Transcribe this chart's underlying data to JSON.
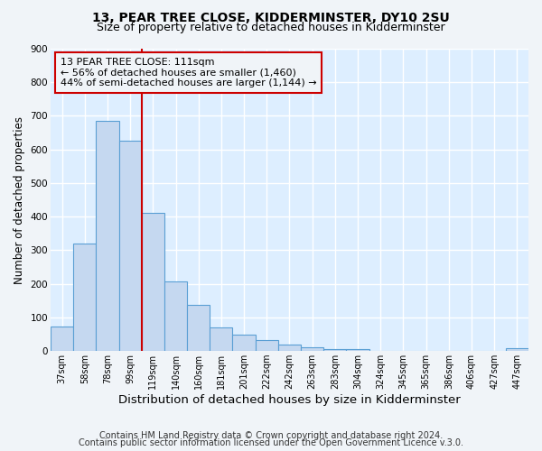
{
  "title1": "13, PEAR TREE CLOSE, KIDDERMINSTER, DY10 2SU",
  "title2": "Size of property relative to detached houses in Kidderminster",
  "xlabel": "Distribution of detached houses by size in Kidderminster",
  "ylabel": "Number of detached properties",
  "categories": [
    "37sqm",
    "58sqm",
    "78sqm",
    "99sqm",
    "119sqm",
    "140sqm",
    "160sqm",
    "181sqm",
    "201sqm",
    "222sqm",
    "242sqm",
    "263sqm",
    "283sqm",
    "304sqm",
    "324sqm",
    "345sqm",
    "365sqm",
    "386sqm",
    "406sqm",
    "427sqm",
    "447sqm"
  ],
  "values": [
    72,
    320,
    685,
    625,
    410,
    208,
    138,
    70,
    48,
    32,
    20,
    10,
    5,
    5,
    0,
    0,
    0,
    0,
    0,
    0,
    8
  ],
  "bar_color": "#c5d8f0",
  "bar_edge_color": "#5a9fd4",
  "vline_x_index": 3,
  "vline_color": "#cc0000",
  "annotation_line1": "13 PEAR TREE CLOSE: 111sqm",
  "annotation_line2": "← 56% of detached houses are smaller (1,460)",
  "annotation_line3": "44% of semi-detached houses are larger (1,144) →",
  "annotation_box_color": "#cc0000",
  "ylim": [
    0,
    900
  ],
  "yticks": [
    0,
    100,
    200,
    300,
    400,
    500,
    600,
    700,
    800,
    900
  ],
  "footer_line1": "Contains HM Land Registry data © Crown copyright and database right 2024.",
  "footer_line2": "Contains public sector information licensed under the Open Government Licence v.3.0.",
  "plot_bg_color": "#ddeeff",
  "fig_bg_color": "#f0f4f8",
  "grid_color": "#ffffff",
  "title1_fontsize": 10,
  "title2_fontsize": 9,
  "xlabel_fontsize": 9.5,
  "ylabel_fontsize": 8.5,
  "footer_fontsize": 7
}
